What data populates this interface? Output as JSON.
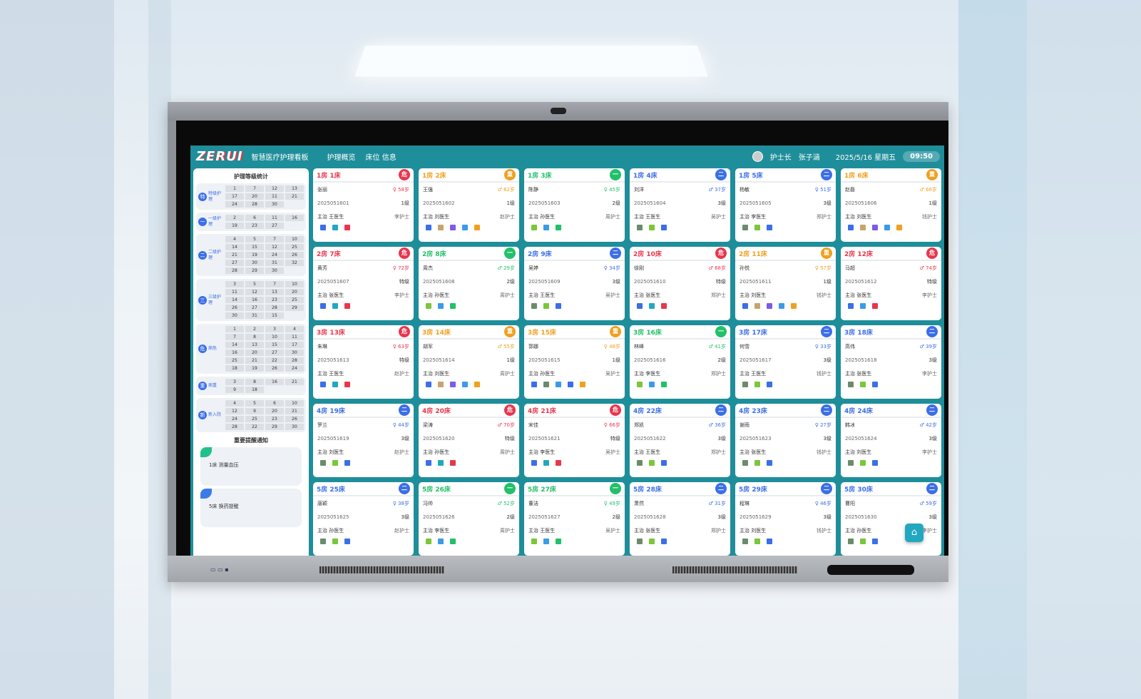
{
  "app": {
    "logo": "ZERUI",
    "title": "智慧医疗护理看板",
    "nav": [
      "护理概览",
      "床位 信息"
    ],
    "user_role": "护士长",
    "user_name": "张子涵",
    "date": "2025/5/16 星期五",
    "time": "09:50"
  },
  "colors": {
    "red": "#e8364d",
    "orange": "#f0a020",
    "green": "#22c06a",
    "blue": "#3b6ee8",
    "teal": "#1e8e9a"
  },
  "sidebar": {
    "title": "护理等级统计",
    "groups": [
      {
        "icon": "特",
        "label": "特级护理",
        "beds": [
          "1",
          "7",
          "12",
          "13",
          "17",
          "20",
          "11",
          "21",
          "24",
          "28",
          "30"
        ]
      },
      {
        "icon": "一",
        "label": "一级护理",
        "beds": [
          "2",
          "6",
          "11",
          "16",
          "19",
          "23",
          "27"
        ]
      },
      {
        "icon": "二",
        "label": "二级护理",
        "beds": [
          "4",
          "5",
          "7",
          "10",
          "14",
          "15",
          "12",
          "25",
          "21",
          "19",
          "24",
          "26",
          "27",
          "30",
          "31",
          "32",
          "28",
          "29",
          "30"
        ]
      },
      {
        "icon": "三",
        "label": "三级护理",
        "beds": [
          "3",
          "5",
          "7",
          "10",
          "11",
          "12",
          "13",
          "20",
          "14",
          "16",
          "23",
          "25",
          "26",
          "27",
          "28",
          "29",
          "30",
          "31",
          "15"
        ]
      },
      {
        "icon": "危",
        "label": "病危",
        "beds": [
          "1",
          "2",
          "3",
          "4",
          "7",
          "8",
          "10",
          "11",
          "14",
          "13",
          "15",
          "17",
          "16",
          "20",
          "27",
          "30",
          "25",
          "21",
          "22",
          "28",
          "18",
          "19",
          "26",
          "24"
        ]
      },
      {
        "icon": "重",
        "label": "病重",
        "beds": [
          "3",
          "8",
          "16",
          "21",
          "9",
          "18"
        ]
      },
      {
        "icon": "新",
        "label": "新入院",
        "beds": [
          "4",
          "5",
          "6",
          "10",
          "12",
          "9",
          "20",
          "21",
          "24",
          "25",
          "23",
          "26",
          "28",
          "22",
          "29",
          "30"
        ]
      }
    ],
    "notice_title": "重要提醒通知",
    "notices": [
      "1床 测量血压",
      "5床 换药提醒"
    ]
  },
  "beds": [
    {
      "label": "1房 1床",
      "color": "red",
      "badge": "危",
      "name": "张丽",
      "info": "♀ 58岁",
      "id": "2025051601",
      "level": "1级",
      "doctor": "主治 王医生",
      "nurse": "李护士",
      "tags": [
        "#3b6ee8",
        "#22a7c0",
        "#e8364d"
      ]
    },
    {
      "label": "1房 2床",
      "color": "orange",
      "badge": "重",
      "name": "王强",
      "info": "♂ 62岁",
      "id": "2025051602",
      "level": "1级",
      "doctor": "主治 刘医生",
      "nurse": "赵护士",
      "tags": [
        "#3b6ee8",
        "#c9a46a",
        "#7a5ce8",
        "#3b9be8",
        "#f0a020"
      ]
    },
    {
      "label": "1房 3床",
      "color": "green",
      "badge": "一",
      "name": "陈静",
      "info": "♀ 45岁",
      "id": "2025051603",
      "level": "2级",
      "doctor": "主治 孙医生",
      "nurse": "周护士",
      "tags": [
        "#7bc63a",
        "#3b9be8",
        "#22c06a"
      ]
    },
    {
      "label": "1房 4床",
      "color": "blue",
      "badge": "二",
      "name": "刘洋",
      "info": "♂ 37岁",
      "id": "2025051604",
      "level": "3级",
      "doctor": "主治 王医生",
      "nurse": "吴护士",
      "tags": [
        "#6b8b6b",
        "#7bc63a",
        "#3b6ee8"
      ]
    },
    {
      "label": "1房 5床",
      "color": "blue",
      "badge": "二",
      "name": "杨敏",
      "info": "♀ 51岁",
      "id": "2025051605",
      "level": "3级",
      "doctor": "主治 李医生",
      "nurse": "郑护士",
      "tags": [
        "#6b8b6b",
        "#7bc63a",
        "#3b6ee8"
      ]
    },
    {
      "label": "1房 6床",
      "color": "orange",
      "badge": "重",
      "name": "赵磊",
      "info": "♂ 66岁",
      "id": "2025051606",
      "level": "1级",
      "doctor": "主治 刘医生",
      "nurse": "钱护士",
      "tags": [
        "#3b6ee8",
        "#c9a46a",
        "#7a5ce8",
        "#3b9be8",
        "#f0a020"
      ]
    },
    {
      "label": "2房 7床",
      "color": "red",
      "badge": "危",
      "name": "黄芳",
      "info": "♀ 72岁",
      "id": "2025051607",
      "level": "特级",
      "doctor": "主治 张医生",
      "nurse": "李护士",
      "tags": [
        "#3b6ee8",
        "#22a7c0",
        "#e8364d"
      ]
    },
    {
      "label": "2房 8床",
      "color": "green",
      "badge": "一",
      "name": "周杰",
      "info": "♂ 29岁",
      "id": "2025051608",
      "level": "2级",
      "doctor": "主治 孙医生",
      "nurse": "周护士",
      "tags": [
        "#7bc63a",
        "#3b9be8",
        "#22c06a"
      ]
    },
    {
      "label": "2房 9床",
      "color": "blue",
      "badge": "二",
      "name": "吴婷",
      "info": "♀ 34岁",
      "id": "2025051609",
      "level": "3级",
      "doctor": "主治 王医生",
      "nurse": "吴护士",
      "tags": [
        "#6b8b6b",
        "#7bc63a",
        "#3b6ee8"
      ]
    },
    {
      "label": "2房 10床",
      "color": "red",
      "badge": "危",
      "name": "徐刚",
      "info": "♂ 68岁",
      "id": "2025051610",
      "level": "特级",
      "doctor": "主治 张医生",
      "nurse": "郑护士",
      "tags": [
        "#3b6ee8",
        "#22a7c0",
        "#e8364d"
      ]
    },
    {
      "label": "2房 11床",
      "color": "orange",
      "badge": "重",
      "name": "孙悦",
      "info": "♀ 57岁",
      "id": "2025051611",
      "level": "1级",
      "doctor": "主治 刘医生",
      "nurse": "钱护士",
      "tags": [
        "#3b6ee8",
        "#c9a46a",
        "#7a5ce8",
        "#3b9be8",
        "#f0a020"
      ]
    },
    {
      "label": "2房 12床",
      "color": "red",
      "badge": "危",
      "name": "马超",
      "info": "♂ 74岁",
      "id": "2025051612",
      "level": "特级",
      "doctor": "主治 张医生",
      "nurse": "李护士",
      "tags": [
        "#3b6ee8",
        "#3b9be8",
        "#e8364d"
      ]
    },
    {
      "label": "3房 13床",
      "color": "red",
      "badge": "危",
      "name": "朱琳",
      "info": "♀ 63岁",
      "id": "2025051613",
      "level": "特级",
      "doctor": "主治 王医生",
      "nurse": "赵护士",
      "tags": [
        "#3b6ee8",
        "#22a7c0",
        "#e8364d"
      ]
    },
    {
      "label": "3房 14床",
      "color": "orange",
      "badge": "重",
      "name": "胡军",
      "info": "♂ 55岁",
      "id": "2025051614",
      "level": "1级",
      "doctor": "主治 刘医生",
      "nurse": "周护士",
      "tags": [
        "#3b6ee8",
        "#c9a46a",
        "#7a5ce8",
        "#3b9be8",
        "#f0a020"
      ]
    },
    {
      "label": "3房 15床",
      "color": "orange",
      "badge": "重",
      "name": "郭娜",
      "info": "♀ 48岁",
      "id": "2025051615",
      "level": "1级",
      "doctor": "主治 孙医生",
      "nurse": "吴护士",
      "tags": [
        "#3b6ee8",
        "#6b8b6b",
        "#3b9be8",
        "#3b6ee8",
        "#f0a020"
      ]
    },
    {
      "label": "3房 16床",
      "color": "green",
      "badge": "一",
      "name": "林峰",
      "info": "♂ 41岁",
      "id": "2025051616",
      "level": "2级",
      "doctor": "主治 李医生",
      "nurse": "郑护士",
      "tags": [
        "#7bc63a",
        "#3b9be8",
        "#22c06a"
      ]
    },
    {
      "label": "3房 17床",
      "color": "blue",
      "badge": "二",
      "name": "何雪",
      "info": "♀ 33岁",
      "id": "2025051617",
      "level": "3级",
      "doctor": "主治 王医生",
      "nurse": "钱护士",
      "tags": [
        "#6b8b6b",
        "#7bc63a",
        "#3b6ee8"
      ]
    },
    {
      "label": "3房 18床",
      "color": "blue",
      "badge": "二",
      "name": "高伟",
      "info": "♂ 39岁",
      "id": "2025051618",
      "level": "3级",
      "doctor": "主治 张医生",
      "nurse": "李护士",
      "tags": [
        "#6b8b6b",
        "#7bc63a",
        "#3b6ee8"
      ]
    },
    {
      "label": "4房 19床",
      "color": "blue",
      "badge": "二",
      "name": "罗兰",
      "info": "♀ 44岁",
      "id": "2025051619",
      "level": "3级",
      "doctor": "主治 刘医生",
      "nurse": "赵护士",
      "tags": [
        "#6b8b6b",
        "#7bc63a",
        "#3b6ee8"
      ]
    },
    {
      "label": "4房 20床",
      "color": "red",
      "badge": "危",
      "name": "梁涛",
      "info": "♂ 70岁",
      "id": "2025051620",
      "level": "特级",
      "doctor": "主治 孙医生",
      "nurse": "周护士",
      "tags": [
        "#3b6ee8",
        "#22a7c0",
        "#e8364d"
      ]
    },
    {
      "label": "4房 21床",
      "color": "red",
      "badge": "危",
      "name": "宋佳",
      "info": "♀ 66岁",
      "id": "2025051621",
      "level": "特级",
      "doctor": "主治 李医生",
      "nurse": "吴护士",
      "tags": [
        "#3b6ee8",
        "#22a7c0",
        "#e8364d"
      ]
    },
    {
      "label": "4房 22床",
      "color": "blue",
      "badge": "二",
      "name": "郑凯",
      "info": "♂ 36岁",
      "id": "2025051622",
      "level": "3级",
      "doctor": "主治 王医生",
      "nurse": "郑护士",
      "tags": [
        "#6b8b6b",
        "#7bc63a",
        "#3b6ee8"
      ]
    },
    {
      "label": "4房 23床",
      "color": "blue",
      "badge": "二",
      "name": "谢雨",
      "info": "♀ 27岁",
      "id": "2025051623",
      "level": "3级",
      "doctor": "主治 张医生",
      "nurse": "钱护士",
      "tags": [
        "#6b8b6b",
        "#7bc63a",
        "#3b6ee8"
      ]
    },
    {
      "label": "4房 24床",
      "color": "blue",
      "badge": "二",
      "name": "韩冰",
      "info": "♂ 42岁",
      "id": "2025051624",
      "level": "3级",
      "doctor": "主治 刘医生",
      "nurse": "李护士",
      "tags": [
        "#6b8b6b",
        "#7bc63a",
        "#3b6ee8"
      ]
    },
    {
      "label": "5房 25床",
      "color": "blue",
      "badge": "二",
      "name": "唐颖",
      "info": "♀ 38岁",
      "id": "2025051625",
      "level": "3级",
      "doctor": "主治 孙医生",
      "nurse": "赵护士",
      "tags": [
        "#6b8b6b",
        "#7bc63a",
        "#3b6ee8"
      ]
    },
    {
      "label": "5房 26床",
      "color": "green",
      "badge": "一",
      "name": "冯帅",
      "info": "♂ 52岁",
      "id": "2025051626",
      "level": "2级",
      "doctor": "主治 李医生",
      "nurse": "周护士",
      "tags": [
        "#7bc63a",
        "#3b9be8",
        "#22c06a"
      ]
    },
    {
      "label": "5房 27床",
      "color": "green",
      "badge": "一",
      "name": "董洁",
      "info": "♀ 49岁",
      "id": "2025051627",
      "level": "2级",
      "doctor": "主治 王医生",
      "nurse": "吴护士",
      "tags": [
        "#7bc63a",
        "#3b9be8",
        "#22c06a"
      ]
    },
    {
      "label": "5房 28床",
      "color": "blue",
      "badge": "二",
      "name": "萧然",
      "info": "♂ 31岁",
      "id": "2025051628",
      "level": "3级",
      "doctor": "主治 张医生",
      "nurse": "郑护士",
      "tags": [
        "#6b8b6b",
        "#7bc63a",
        "#3b6ee8"
      ]
    },
    {
      "label": "5房 29床",
      "color": "blue",
      "badge": "二",
      "name": "程琳",
      "info": "♀ 46岁",
      "id": "2025051629",
      "level": "3级",
      "doctor": "主治 刘医生",
      "nurse": "钱护士",
      "tags": [
        "#6b8b6b",
        "#7bc63a",
        "#3b6ee8"
      ]
    },
    {
      "label": "5房 30床",
      "color": "blue",
      "badge": "二",
      "name": "曹阳",
      "info": "♂ 59岁",
      "id": "2025051630",
      "level": "3级",
      "doctor": "主治 孙医生",
      "nurse": "李护士",
      "tags": [
        "#6b8b6b",
        "#7bc63a",
        "#3b6ee8"
      ]
    }
  ],
  "home_icon": "home-icon"
}
